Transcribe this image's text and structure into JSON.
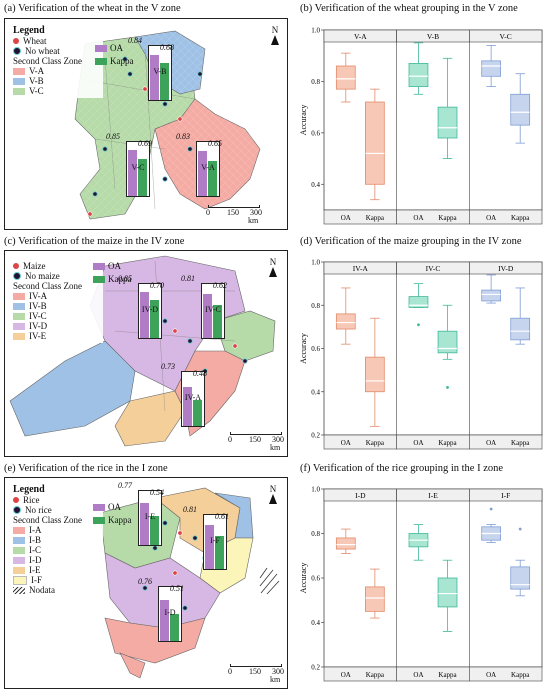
{
  "captions": {
    "a": "(a) Verification of the wheat in the V zone",
    "b": "(b) Verification of the wheat grouping in the V zone",
    "c": "(c) Verification of the maize in the IV zone",
    "d": "(d) Verification of the maize grouping in the IV zone",
    "e": "(e) Verification of the rice in the I zone",
    "f": "(f) Verification of the rice grouping in the I zone"
  },
  "maps": [
    {
      "id": "a",
      "legend_title": "Legend",
      "point_labels": [
        "Wheat",
        "No wheat"
      ],
      "metric_labels": [
        "OA",
        "Kappa"
      ],
      "zone_title": "Second Class Zone",
      "zones": [
        {
          "name": "V-A",
          "color": "#f4aba4"
        },
        {
          "name": "V-B",
          "color": "#9fc1e5"
        },
        {
          "name": "V-C",
          "color": "#b6dba9"
        }
      ],
      "bars": [
        {
          "zone": "V-B",
          "oa": 0.84,
          "kappa": 0.68
        },
        {
          "zone": "V-C",
          "oa": 0.85,
          "kappa": 0.69
        },
        {
          "zone": "V-A",
          "oa": 0.83,
          "kappa": 0.65
        }
      ],
      "north": "N",
      "scale": [
        "0",
        "150",
        "300"
      ],
      "scale_unit": "km"
    },
    {
      "id": "c",
      "point_labels": [
        "Maize",
        "No maize"
      ],
      "metric_labels": [
        "OA",
        "Kappa"
      ],
      "zone_title": "Second Class Zone",
      "zones": [
        {
          "name": "IV-A",
          "color": "#f4aba4"
        },
        {
          "name": "IV-B",
          "color": "#9fc1e5"
        },
        {
          "name": "IV-C",
          "color": "#b6dba9"
        },
        {
          "name": "IV-D",
          "color": "#d7b7e3"
        },
        {
          "name": "IV-E",
          "color": "#f5cf9a"
        }
      ],
      "bars": [
        {
          "zone": "IV-D",
          "oa": 0.85,
          "kappa": 0.7
        },
        {
          "zone": "IV-C",
          "oa": 0.81,
          "kappa": 0.62
        },
        {
          "zone": "IV-A",
          "oa": 0.73,
          "kappa": 0.48
        }
      ],
      "north": "N",
      "scale": [
        "0",
        "150",
        "300"
      ],
      "scale_unit": "km"
    },
    {
      "id": "e",
      "legend_title": "Legend",
      "point_labels": [
        "Rice",
        "No rice"
      ],
      "metric_labels": [
        "OA",
        "Kappa"
      ],
      "zone_title": "Second Class Zone",
      "zones": [
        {
          "name": "I-A",
          "color": "#f4aba4"
        },
        {
          "name": "I-B",
          "color": "#9fc1e5"
        },
        {
          "name": "I-C",
          "color": "#b6dba9"
        },
        {
          "name": "I-D",
          "color": "#d7b7e3"
        },
        {
          "name": "I-E",
          "color": "#f5cf9a"
        },
        {
          "name": "I-F",
          "color": "#fbf5b9"
        }
      ],
      "nodata_label": "Nodata",
      "bars": [
        {
          "zone": "I-E",
          "oa": 0.77,
          "kappa": 0.54
        },
        {
          "zone": "I-F",
          "oa": 0.81,
          "kappa": 0.61
        },
        {
          "zone": "I-D",
          "oa": 0.76,
          "kappa": 0.51
        }
      ],
      "north": "N",
      "scale": [
        "0",
        "150",
        "300"
      ],
      "scale_unit": "km"
    }
  ],
  "chart_data": [
    {
      "id": "b",
      "type": "box",
      "ylabel": "Accuracy",
      "ylim": [
        0.3,
        1.0
      ],
      "yticks": [
        "0.4",
        "0.6",
        "0.8",
        "1.0"
      ],
      "panels": [
        {
          "zone": "V-A",
          "oa": {
            "min": 0.72,
            "q1": 0.77,
            "median": 0.81,
            "q3": 0.86,
            "max": 0.91,
            "outliers": []
          },
          "kappa": {
            "min": 0.34,
            "q1": 0.4,
            "median": 0.52,
            "q3": 0.72,
            "max": 0.77,
            "outliers": []
          }
        },
        {
          "zone": "V-B",
          "oa": {
            "min": 0.75,
            "q1": 0.78,
            "median": 0.82,
            "q3": 0.87,
            "max": 0.95,
            "outliers": []
          },
          "kappa": {
            "min": 0.5,
            "q1": 0.58,
            "median": 0.62,
            "q3": 0.7,
            "max": 0.89,
            "outliers": []
          }
        },
        {
          "zone": "V-C",
          "oa": {
            "min": 0.78,
            "q1": 0.82,
            "median": 0.86,
            "q3": 0.88,
            "max": 0.94,
            "outliers": []
          },
          "kappa": {
            "min": 0.56,
            "q1": 0.63,
            "median": 0.68,
            "q3": 0.75,
            "max": 0.83,
            "outliers": []
          }
        }
      ],
      "categories": [
        "OA",
        "Kappa"
      ],
      "colors": {
        "oa": [
          "#f8c8b6",
          "#a8e6d2",
          "#c7d4ee"
        ],
        "kappa": [
          "#f8c8b6",
          "#a8e6d2",
          "#c7d4ee"
        ]
      }
    },
    {
      "id": "d",
      "type": "box",
      "ylabel": "Accuracy",
      "ylim": [
        0.2,
        1.0
      ],
      "yticks": [
        "0.2",
        "0.4",
        "0.6",
        "0.8",
        "1.0"
      ],
      "panels": [
        {
          "zone": "IV-A",
          "oa": {
            "min": 0.62,
            "q1": 0.69,
            "median": 0.72,
            "q3": 0.76,
            "max": 0.88,
            "outliers": []
          },
          "kappa": {
            "min": 0.24,
            "q1": 0.4,
            "median": 0.45,
            "q3": 0.56,
            "max": 0.74,
            "outliers": []
          }
        },
        {
          "zone": "IV-C",
          "oa": {
            "min": 0.79,
            "q1": 0.79,
            "median": 0.8,
            "q3": 0.84,
            "max": 0.9,
            "outliers": [
              0.71
            ]
          },
          "kappa": {
            "min": 0.55,
            "q1": 0.58,
            "median": 0.6,
            "q3": 0.68,
            "max": 0.8,
            "outliers": [
              0.42
            ]
          }
        },
        {
          "zone": "IV-D",
          "oa": {
            "min": 0.81,
            "q1": 0.82,
            "median": 0.85,
            "q3": 0.87,
            "max": 0.94,
            "outliers": []
          },
          "kappa": {
            "min": 0.62,
            "q1": 0.64,
            "median": 0.68,
            "q3": 0.74,
            "max": 0.88,
            "outliers": []
          }
        }
      ],
      "categories": [
        "OA",
        "Kappa"
      ],
      "colors": {
        "oa": [
          "#f8c8b6",
          "#a8e6d2",
          "#c7d4ee"
        ],
        "kappa": [
          "#f8c8b6",
          "#a8e6d2",
          "#c7d4ee"
        ]
      }
    },
    {
      "id": "f",
      "type": "box",
      "ylabel": "Accuracy",
      "ylim": [
        0.2,
        1.0
      ],
      "yticks": [
        "0.2",
        "0.4",
        "0.6",
        "0.8",
        "1.0"
      ],
      "panels": [
        {
          "zone": "I-D",
          "oa": {
            "min": 0.71,
            "q1": 0.73,
            "median": 0.75,
            "q3": 0.78,
            "max": 0.82,
            "outliers": []
          },
          "kappa": {
            "min": 0.42,
            "q1": 0.45,
            "median": 0.51,
            "q3": 0.56,
            "max": 0.64,
            "outliers": []
          }
        },
        {
          "zone": "I-E",
          "oa": {
            "min": 0.68,
            "q1": 0.74,
            "median": 0.77,
            "q3": 0.8,
            "max": 0.84,
            "outliers": []
          },
          "kappa": {
            "min": 0.36,
            "q1": 0.47,
            "median": 0.53,
            "q3": 0.6,
            "max": 0.68,
            "outliers": []
          }
        },
        {
          "zone": "I-F",
          "oa": {
            "min": 0.76,
            "q1": 0.77,
            "median": 0.8,
            "q3": 0.83,
            "max": 0.84,
            "outliers": [
              0.91
            ]
          },
          "kappa": {
            "min": 0.52,
            "q1": 0.55,
            "median": 0.57,
            "q3": 0.65,
            "max": 0.68,
            "outliers": [
              0.82
            ]
          }
        }
      ],
      "categories": [
        "OA",
        "Kappa"
      ],
      "colors": {
        "oa": [
          "#f8c8b6",
          "#a8e6d2",
          "#c7d4ee"
        ],
        "kappa": [
          "#f8c8b6",
          "#a8e6d2",
          "#c7d4ee"
        ]
      }
    }
  ]
}
